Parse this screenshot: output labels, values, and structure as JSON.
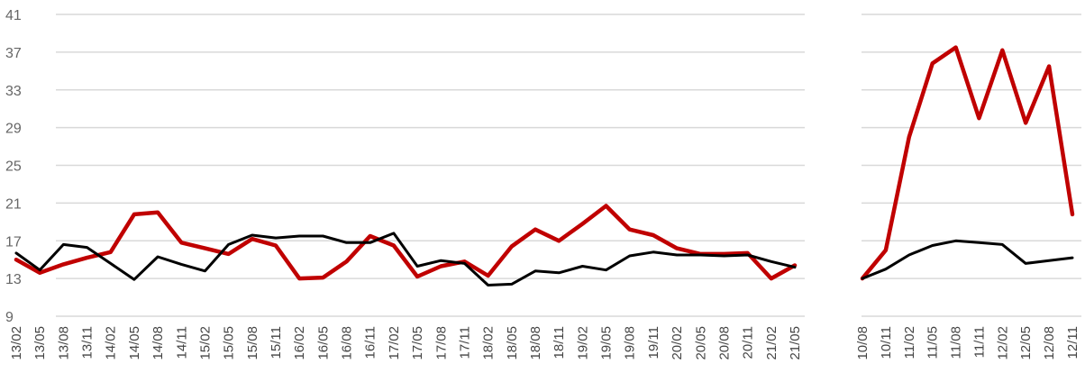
{
  "chart_data": [
    {
      "type": "line",
      "panel": "left",
      "categories": [
        "13/02",
        "13/05",
        "13/08",
        "13/11",
        "14/02",
        "14/05",
        "14/08",
        "14/11",
        "15/02",
        "15/05",
        "15/08",
        "15/11",
        "16/02",
        "16/05",
        "16/08",
        "16/11",
        "17/02",
        "17/05",
        "17/08",
        "17/11",
        "18/02",
        "18/05",
        "18/08",
        "18/11",
        "19/02",
        "19/05",
        "19/08",
        "19/11",
        "20/02",
        "20/05",
        "20/08",
        "20/11",
        "21/02",
        "21/05"
      ],
      "ylim": [
        9,
        41
      ],
      "yticks": [
        9,
        13,
        17,
        21,
        25,
        29,
        33,
        37,
        41
      ],
      "grid": true,
      "series": [
        {
          "color": "#c00000",
          "values": [
            15.0,
            13.6,
            14.5,
            15.2,
            15.8,
            19.8,
            20.0,
            16.8,
            16.2,
            15.6,
            17.2,
            16.5,
            13.0,
            13.1,
            14.8,
            17.5,
            16.5,
            13.2,
            14.3,
            14.8,
            13.3,
            16.4,
            18.2,
            17.0,
            18.8,
            20.7,
            18.2,
            17.6,
            16.2,
            15.6,
            15.6,
            15.7,
            13.0,
            14.4
          ]
        },
        {
          "color": "#000000",
          "values": [
            15.7,
            13.9,
            16.6,
            16.3,
            14.6,
            12.9,
            15.3,
            14.5,
            13.8,
            16.6,
            17.6,
            17.3,
            17.5,
            17.5,
            16.8,
            16.8,
            17.8,
            14.3,
            14.9,
            14.6,
            12.3,
            12.4,
            13.8,
            13.6,
            14.3,
            13.9,
            15.4,
            15.8,
            15.5,
            15.5,
            15.4,
            15.5,
            14.8,
            14.2
          ]
        }
      ]
    },
    {
      "type": "line",
      "panel": "right",
      "categories": [
        "10/08",
        "10/11",
        "11/02",
        "11/05",
        "11/08",
        "11/11",
        "12/02",
        "12/05",
        "12/08",
        "12/11"
      ],
      "ylim": [
        9,
        41
      ],
      "yticks": [
        9,
        13,
        17,
        21,
        25,
        29,
        33,
        37,
        41
      ],
      "grid": true,
      "series": [
        {
          "color": "#c00000",
          "values": [
            13.0,
            16.0,
            28.0,
            35.8,
            37.5,
            30.0,
            37.2,
            29.5,
            35.5,
            19.8
          ]
        },
        {
          "color": "#000000",
          "values": [
            13.0,
            14.0,
            15.5,
            16.5,
            17.0,
            16.8,
            16.6,
            14.6,
            14.9,
            15.2
          ]
        }
      ]
    }
  ]
}
